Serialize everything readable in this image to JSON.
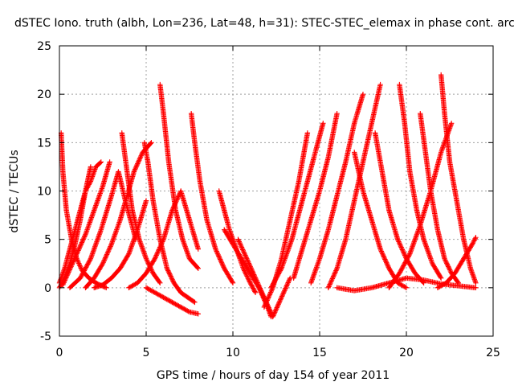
{
  "chart_data": {
    "type": "scatter",
    "title": "dSTEC Iono. truth (albh, Lon=236, Lat=48, h=31): STEC-STEC_elemax in phase cont. arc",
    "xlabel": "GPS time / hours of day 154 of year 2011",
    "ylabel": "dSTEC  / TECUs",
    "xlim": [
      0,
      25
    ],
    "ylim": [
      -5,
      25
    ],
    "xticks": [
      0,
      5,
      10,
      15,
      20,
      25
    ],
    "yticks": [
      -5,
      0,
      5,
      10,
      15,
      20,
      25
    ],
    "grid": true,
    "marker": "plus",
    "color": "#ff0000",
    "series": [
      {
        "x": [
          0.1,
          0.2,
          0.4,
          0.7,
          1.0,
          1.3,
          1.7,
          2.2,
          2.7
        ],
        "y": [
          16.0,
          12.0,
          8.0,
          5.0,
          3.0,
          1.8,
          1.0,
          0.4,
          0.0
        ]
      },
      {
        "x": [
          0.0,
          0.3,
          0.6,
          0.9,
          1.2,
          1.5,
          1.8,
          2.1,
          2.4
        ],
        "y": [
          0.5,
          2.0,
          4.0,
          6.0,
          8.0,
          10.0,
          11.0,
          12.5,
          13.0
        ]
      },
      {
        "x": [
          0.0,
          0.3,
          0.6,
          0.9,
          1.2,
          1.5,
          1.8
        ],
        "y": [
          0.0,
          1.0,
          2.5,
          4.5,
          7.0,
          10.0,
          12.5
        ]
      },
      {
        "x": [
          0.2,
          0.5,
          1.0,
          1.5,
          2.0,
          2.5,
          2.9
        ],
        "y": [
          0.3,
          1.5,
          3.5,
          5.5,
          8.0,
          10.5,
          13.0
        ]
      },
      {
        "x": [
          0.6,
          1.2,
          1.8,
          2.4,
          3.0,
          3.4,
          3.8,
          4.4
        ],
        "y": [
          0.0,
          1.0,
          3.0,
          6.0,
          9.5,
          12.0,
          9.0,
          5.0
        ]
      },
      {
        "x": [
          1.5,
          2.0,
          2.5,
          3.0,
          3.5,
          3.9,
          4.3,
          4.8,
          5.3
        ],
        "y": [
          0.0,
          1.0,
          2.5,
          4.5,
          7.0,
          9.5,
          12.0,
          14.0,
          15.0
        ]
      },
      {
        "x": [
          2.0,
          2.5,
          3.0,
          3.5,
          4.0,
          4.5,
          5.0
        ],
        "y": [
          0.0,
          0.3,
          1.0,
          2.0,
          3.5,
          6.0,
          9.0
        ]
      },
      {
        "x": [
          3.6,
          3.9,
          4.2,
          4.6,
          5.0,
          5.4,
          5.8
        ],
        "y": [
          16.0,
          12.0,
          8.0,
          5.0,
          3.0,
          1.5,
          0.5
        ]
      },
      {
        "x": [
          4.9,
          5.1,
          5.4,
          5.8,
          6.2,
          6.6,
          7.0,
          7.4,
          7.8
        ],
        "y": [
          15.0,
          13.0,
          9.0,
          5.0,
          2.0,
          0.5,
          -0.5,
          -1.0,
          -1.5
        ]
      },
      {
        "x": [
          5.8,
          6.0,
          6.3,
          6.7,
          7.1,
          7.5,
          8.0
        ],
        "y": [
          21.0,
          18.0,
          13.0,
          8.0,
          5.0,
          3.0,
          2.0
        ]
      },
      {
        "x": [
          4.0,
          4.5,
          5.0,
          5.5,
          6.0,
          6.5,
          7.0,
          7.5,
          8.0
        ],
        "y": [
          0.0,
          0.5,
          1.5,
          3.0,
          5.0,
          8.0,
          10.0,
          7.0,
          4.0
        ]
      },
      {
        "x": [
          5.0,
          5.5,
          6.0,
          6.5,
          7.0,
          7.5,
          8.0
        ],
        "y": [
          0.0,
          -0.5,
          -1.0,
          -1.5,
          -2.0,
          -2.5,
          -2.7
        ]
      },
      {
        "x": [
          7.6,
          7.8,
          8.1,
          8.5,
          9.0,
          9.5,
          10.0
        ],
        "y": [
          18.0,
          15.0,
          11.0,
          7.0,
          4.0,
          2.0,
          0.5
        ]
      },
      {
        "x": [
          9.2,
          9.5,
          9.8,
          10.2,
          10.6,
          11.0,
          11.3
        ],
        "y": [
          10.0,
          8.0,
          6.0,
          4.0,
          2.0,
          0.5,
          -0.5
        ]
      },
      {
        "x": [
          9.5,
          10.0,
          10.5,
          11.0,
          11.5,
          12.0,
          12.2
        ],
        "y": [
          6.0,
          4.5,
          3.0,
          1.5,
          0.0,
          -2.0,
          -3.0
        ]
      },
      {
        "x": [
          10.3,
          10.8,
          11.3,
          11.8,
          12.3,
          12.8,
          13.3
        ],
        "y": [
          5.0,
          3.0,
          1.0,
          -1.0,
          -3.0,
          -1.0,
          1.0
        ]
      },
      {
        "x": [
          11.8,
          12.3,
          12.8,
          13.3,
          13.8,
          14.3
        ],
        "y": [
          -2.0,
          0.0,
          3.0,
          7.0,
          11.0,
          16.0
        ]
      },
      {
        "x": [
          12.2,
          12.8,
          13.4,
          14.0,
          14.6,
          15.2
        ],
        "y": [
          0.0,
          2.0,
          5.0,
          9.0,
          13.0,
          17.0
        ]
      },
      {
        "x": [
          13.5,
          14.0,
          14.5,
          15.0,
          15.5,
          16.0
        ],
        "y": [
          1.0,
          4.0,
          7.0,
          10.0,
          13.5,
          18.0
        ]
      },
      {
        "x": [
          14.5,
          15.0,
          15.5,
          16.0,
          16.5,
          17.0,
          17.5
        ],
        "y": [
          0.5,
          3.0,
          6.0,
          9.5,
          13.0,
          17.0,
          20.0
        ]
      },
      {
        "x": [
          15.5,
          16.0,
          16.5,
          17.0,
          17.5,
          18.0,
          18.5
        ],
        "y": [
          0.0,
          2.0,
          5.0,
          9.0,
          13.0,
          17.0,
          21.0
        ]
      },
      {
        "x": [
          17.0,
          17.5,
          18.0,
          18.5,
          19.0,
          19.5,
          20.0
        ],
        "y": [
          14.0,
          10.0,
          7.0,
          4.0,
          2.0,
          0.5,
          0.0
        ]
      },
      {
        "x": [
          18.2,
          18.6,
          19.0,
          19.5,
          20.0,
          20.5,
          21.0
        ],
        "y": [
          16.0,
          12.0,
          8.0,
          5.0,
          3.0,
          1.5,
          0.5
        ]
      },
      {
        "x": [
          19.6,
          19.9,
          20.2,
          20.6,
          21.0,
          21.5,
          22.0
        ],
        "y": [
          21.0,
          17.0,
          12.0,
          8.0,
          5.0,
          2.5,
          1.0
        ]
      },
      {
        "x": [
          20.8,
          21.1,
          21.4,
          21.8,
          22.2,
          22.6,
          23.0
        ],
        "y": [
          18.0,
          14.0,
          10.0,
          6.0,
          3.0,
          1.5,
          0.5
        ]
      },
      {
        "x": [
          22.0,
          22.2,
          22.5,
          22.9,
          23.3,
          23.7,
          24.0
        ],
        "y": [
          22.0,
          18.0,
          13.0,
          9.0,
          5.0,
          2.0,
          0.5
        ]
      },
      {
        "x": [
          19.0,
          19.6,
          20.2,
          20.8,
          21.4,
          22.0,
          22.6
        ],
        "y": [
          0.0,
          1.5,
          3.5,
          6.5,
          10.0,
          14.0,
          17.0
        ]
      },
      {
        "x": [
          21.8,
          22.3,
          22.8,
          23.3,
          23.8,
          24.0
        ],
        "y": [
          0.0,
          0.5,
          1.5,
          3.0,
          4.5,
          5.2
        ]
      },
      {
        "x": [
          16.0,
          17.0,
          18.0,
          19.0,
          20.0,
          21.0,
          22.0,
          23.0,
          24.0
        ],
        "y": [
          0.0,
          -0.3,
          0.0,
          0.5,
          1.0,
          0.8,
          0.4,
          0.2,
          0.0
        ]
      }
    ]
  }
}
